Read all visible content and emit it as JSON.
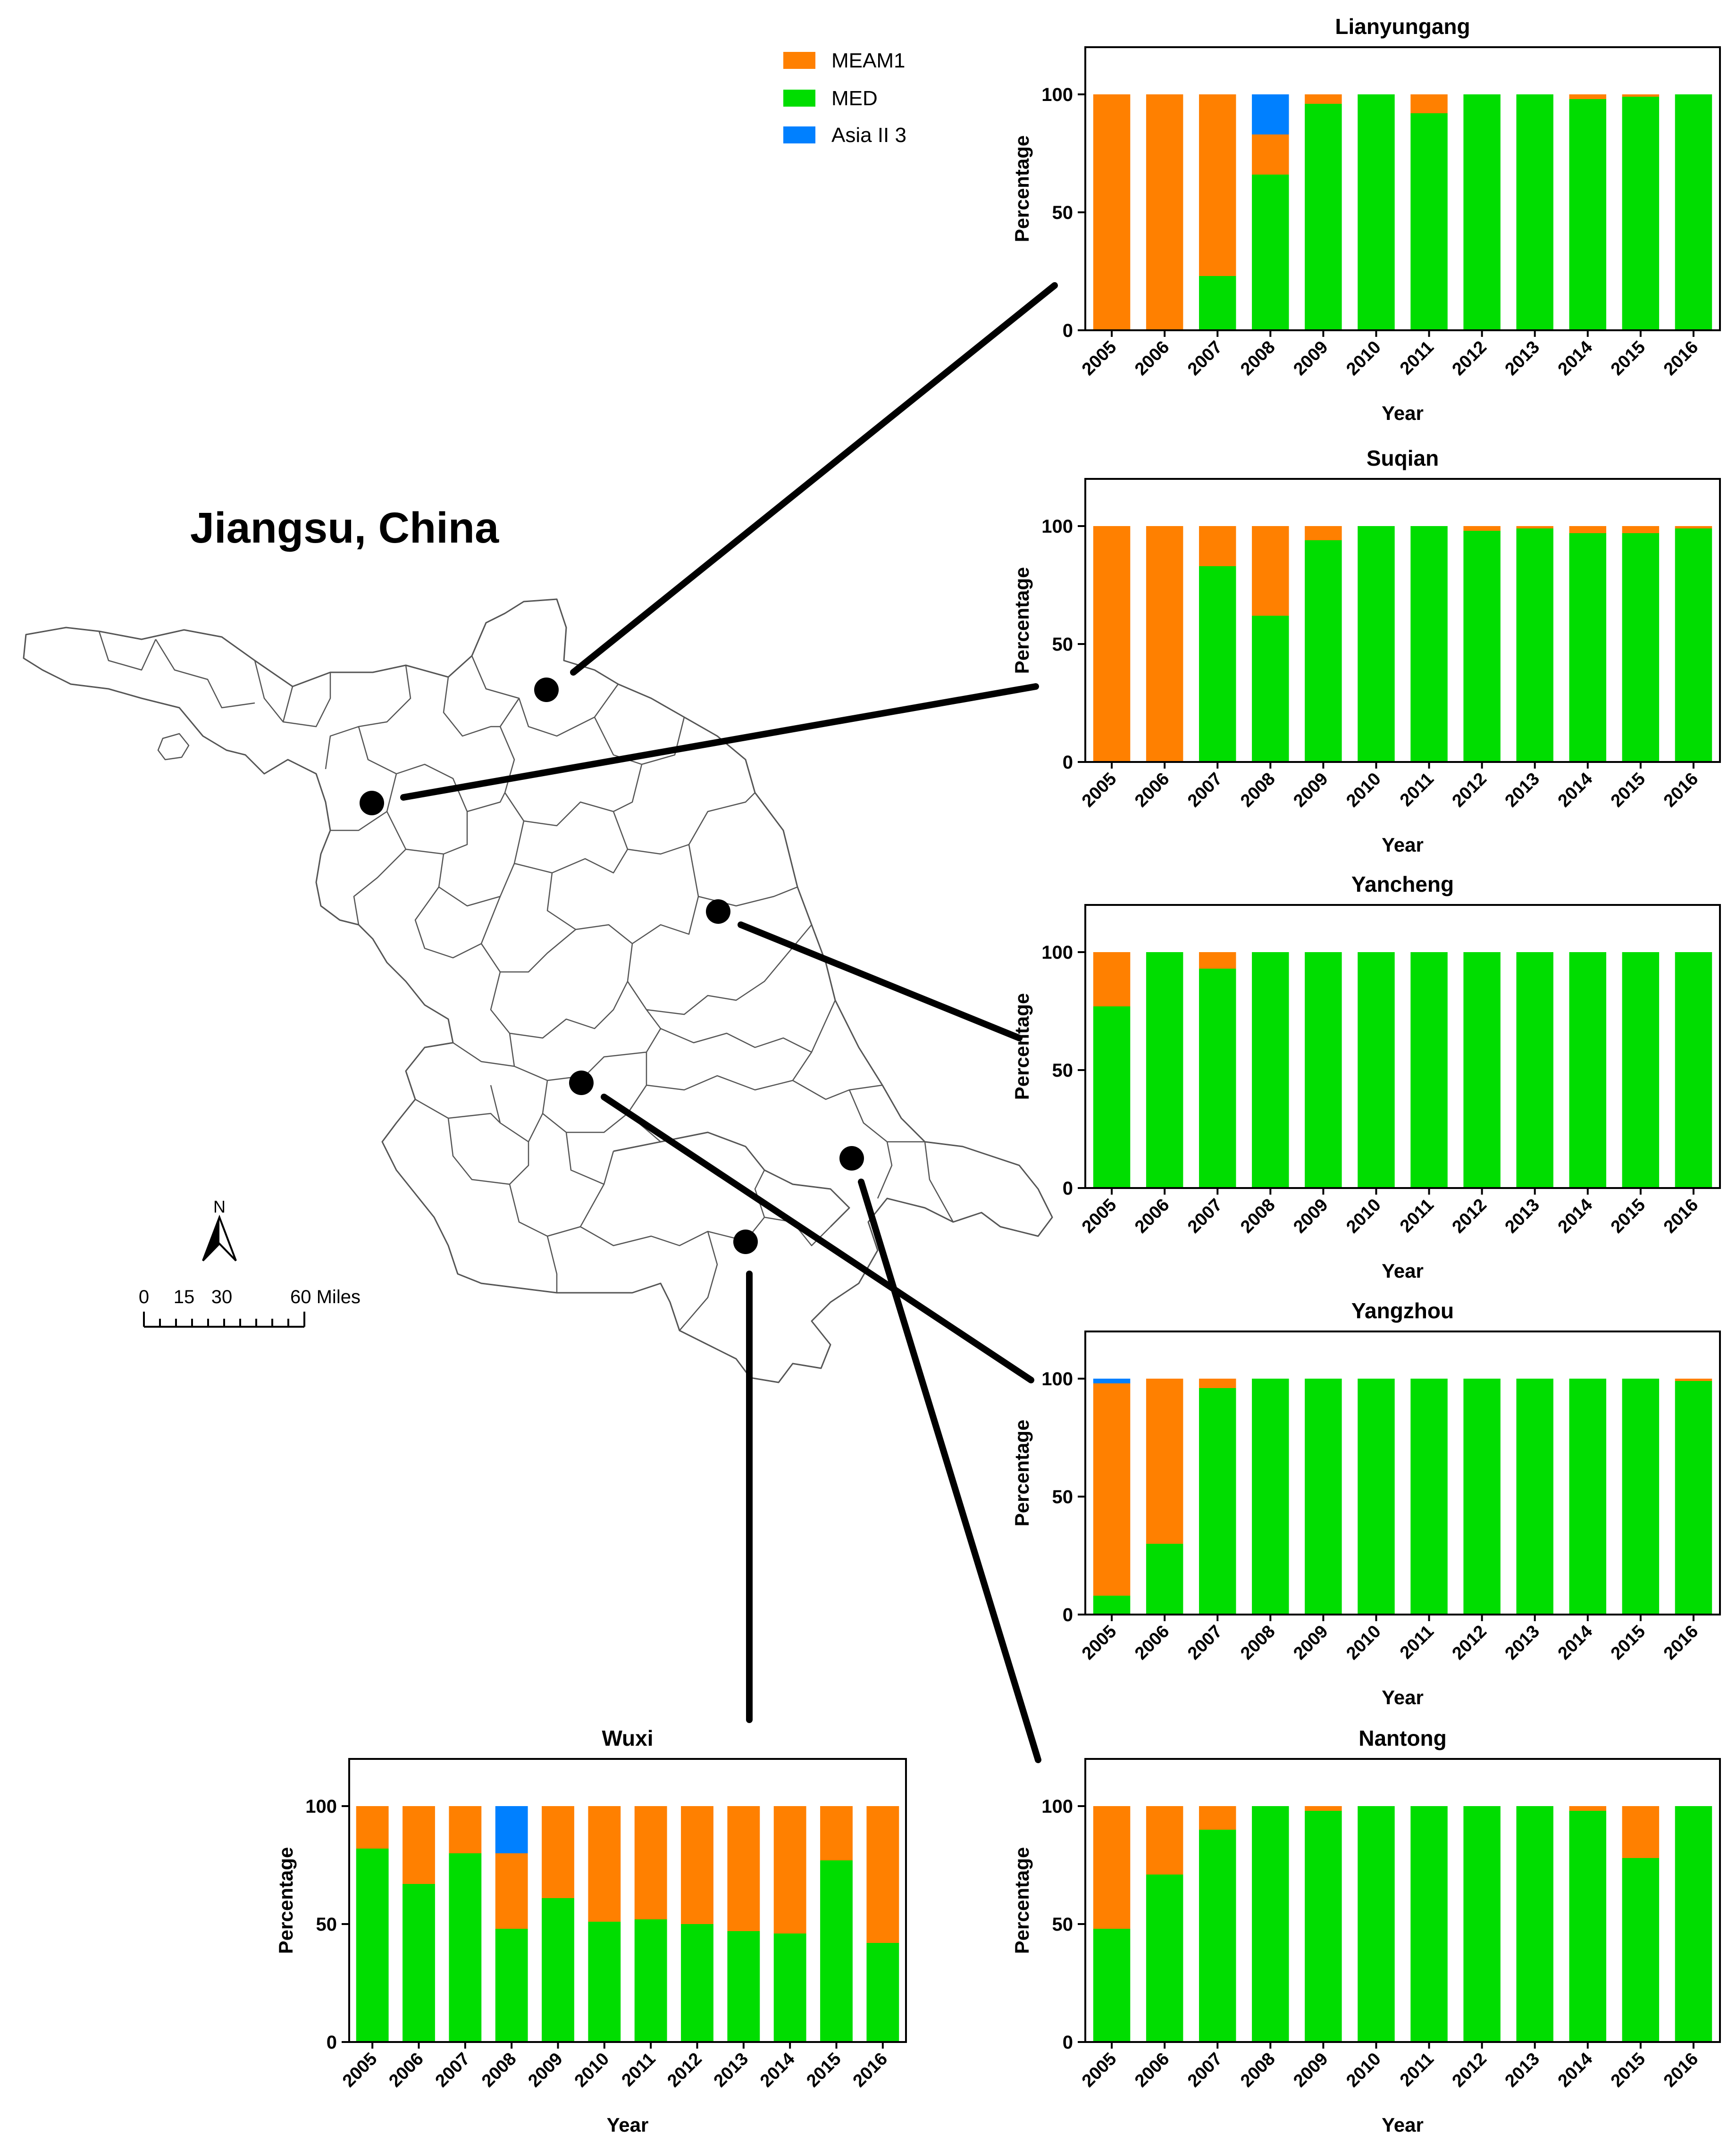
{
  "map": {
    "title": "Jiangsu, China",
    "north_label": "N",
    "scale_labels": [
      "0",
      "15",
      "30",
      "60 Miles"
    ]
  },
  "legend": {
    "items": [
      {
        "label": "MEAM1",
        "color": "#ff8000"
      },
      {
        "label": "MED",
        "color": "#00dd00"
      },
      {
        "label": "Asia II 3",
        "color": "#0080ff"
      }
    ]
  },
  "chart_data": [
    {
      "type": "bar",
      "stacked": true,
      "title": "Lianyungang",
      "xlabel": "Year",
      "ylabel": "Percentage",
      "ylim": [
        0,
        120
      ],
      "yticks": [
        0,
        50,
        100
      ],
      "categories": [
        "2005",
        "2006",
        "2007",
        "2008",
        "2009",
        "2010",
        "2011",
        "2012",
        "2013",
        "2014",
        "2015",
        "2016"
      ],
      "series": [
        {
          "name": "MED",
          "values": [
            0,
            0,
            23,
            66,
            96,
            100,
            92,
            100,
            100,
            98,
            99,
            100
          ]
        },
        {
          "name": "MEAM1",
          "values": [
            100,
            100,
            77,
            17,
            4,
            0,
            8,
            0,
            0,
            2,
            1,
            0
          ]
        },
        {
          "name": "Asia II 3",
          "values": [
            0,
            0,
            0,
            17,
            0,
            0,
            0,
            0,
            0,
            0,
            0,
            0
          ]
        }
      ]
    },
    {
      "type": "bar",
      "stacked": true,
      "title": "Suqian",
      "xlabel": "Year",
      "ylabel": "Percentage",
      "ylim": [
        0,
        120
      ],
      "yticks": [
        0,
        50,
        100
      ],
      "categories": [
        "2005",
        "2006",
        "2007",
        "2008",
        "2009",
        "2010",
        "2011",
        "2012",
        "2013",
        "2014",
        "2015",
        "2016"
      ],
      "series": [
        {
          "name": "MED",
          "values": [
            0,
            0,
            83,
            62,
            94,
            100,
            100,
            98,
            99,
            97,
            97,
            99
          ]
        },
        {
          "name": "MEAM1",
          "values": [
            100,
            100,
            17,
            38,
            6,
            0,
            0,
            2,
            1,
            3,
            3,
            1
          ]
        },
        {
          "name": "Asia II 3",
          "values": [
            0,
            0,
            0,
            0,
            0,
            0,
            0,
            0,
            0,
            0,
            0,
            0
          ]
        }
      ]
    },
    {
      "type": "bar",
      "stacked": true,
      "title": "Yancheng",
      "xlabel": "Year",
      "ylabel": "Percentage",
      "ylim": [
        0,
        120
      ],
      "yticks": [
        0,
        50,
        100
      ],
      "categories": [
        "2005",
        "2006",
        "2007",
        "2008",
        "2009",
        "2010",
        "2011",
        "2012",
        "2013",
        "2014",
        "2015",
        "2016"
      ],
      "series": [
        {
          "name": "MED",
          "values": [
            77,
            100,
            93,
            100,
            100,
            100,
            100,
            100,
            100,
            100,
            100,
            100
          ]
        },
        {
          "name": "MEAM1",
          "values": [
            23,
            0,
            7,
            0,
            0,
            0,
            0,
            0,
            0,
            0,
            0,
            0
          ]
        },
        {
          "name": "Asia II 3",
          "values": [
            0,
            0,
            0,
            0,
            0,
            0,
            0,
            0,
            0,
            0,
            0,
            0
          ]
        }
      ]
    },
    {
      "type": "bar",
      "stacked": true,
      "title": "Yangzhou",
      "xlabel": "Year",
      "ylabel": "Percentage",
      "ylim": [
        0,
        120
      ],
      "yticks": [
        0,
        50,
        100
      ],
      "categories": [
        "2005",
        "2006",
        "2007",
        "2008",
        "2009",
        "2010",
        "2011",
        "2012",
        "2013",
        "2014",
        "2015",
        "2016"
      ],
      "series": [
        {
          "name": "MED",
          "values": [
            8,
            30,
            96,
            100,
            100,
            100,
            100,
            100,
            100,
            100,
            100,
            99
          ]
        },
        {
          "name": "MEAM1",
          "values": [
            90,
            70,
            4,
            0,
            0,
            0,
            0,
            0,
            0,
            0,
            0,
            1
          ]
        },
        {
          "name": "Asia II 3",
          "values": [
            2,
            0,
            0,
            0,
            0,
            0,
            0,
            0,
            0,
            0,
            0,
            0
          ]
        }
      ]
    },
    {
      "type": "bar",
      "stacked": true,
      "title": "Wuxi",
      "xlabel": "Year",
      "ylabel": "Percentage",
      "ylim": [
        0,
        120
      ],
      "yticks": [
        0,
        50,
        100
      ],
      "categories": [
        "2005",
        "2006",
        "2007",
        "2008",
        "2009",
        "2010",
        "2011",
        "2012",
        "2013",
        "2014",
        "2015",
        "2016"
      ],
      "series": [
        {
          "name": "MED",
          "values": [
            82,
            67,
            80,
            48,
            61,
            51,
            52,
            50,
            47,
            46,
            77,
            42
          ]
        },
        {
          "name": "MEAM1",
          "values": [
            18,
            33,
            20,
            32,
            39,
            49,
            48,
            50,
            53,
            54,
            23,
            58
          ]
        },
        {
          "name": "Asia II 3",
          "values": [
            0,
            0,
            0,
            20,
            0,
            0,
            0,
            0,
            0,
            0,
            0,
            0
          ]
        }
      ]
    },
    {
      "type": "bar",
      "stacked": true,
      "title": "Nantong",
      "xlabel": "Year",
      "ylabel": "Percentage",
      "ylim": [
        0,
        120
      ],
      "yticks": [
        0,
        50,
        100
      ],
      "categories": [
        "2005",
        "2006",
        "2007",
        "2008",
        "2009",
        "2010",
        "2011",
        "2012",
        "2013",
        "2014",
        "2015",
        "2016"
      ],
      "series": [
        {
          "name": "MED",
          "values": [
            48,
            71,
            90,
            100,
            98,
            100,
            100,
            100,
            100,
            98,
            78,
            100
          ]
        },
        {
          "name": "MEAM1",
          "values": [
            52,
            29,
            10,
            0,
            2,
            0,
            0,
            0,
            0,
            2,
            22,
            0
          ]
        },
        {
          "name": "Asia II 3",
          "values": [
            0,
            0,
            0,
            0,
            0,
            0,
            0,
            0,
            0,
            0,
            0,
            0
          ]
        }
      ]
    }
  ]
}
